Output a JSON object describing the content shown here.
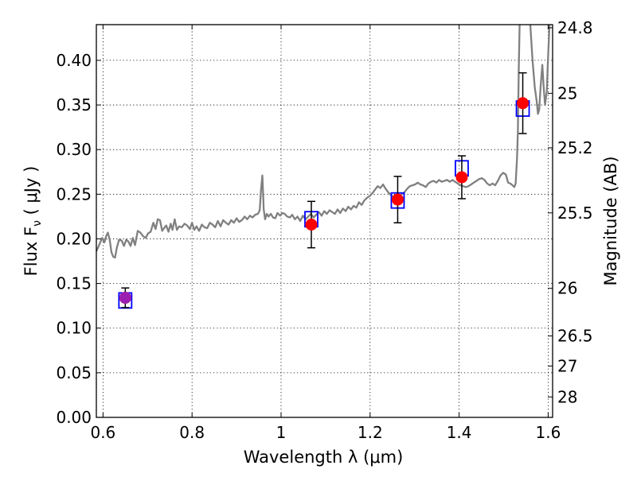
{
  "chart_data": {
    "type": "scatter",
    "xlabel": "Wavelength  λ (μm)",
    "ylabel": "Flux  F",
    "ylabel_sub": "ν",
    "ylabel_unit": " ( μJy )",
    "y2label": "Magnitude (AB)",
    "xlim": [
      0.585,
      1.61
    ],
    "ylim": [
      0.0,
      0.44
    ],
    "grid": true,
    "x_ticks": [
      {
        "value": 0.6,
        "label": "0.6"
      },
      {
        "value": 0.8,
        "label": "0.8"
      },
      {
        "value": 1.0,
        "label": "1"
      },
      {
        "value": 1.2,
        "label": "1.2"
      },
      {
        "value": 1.4,
        "label": "1.4"
      },
      {
        "value": 1.6,
        "label": "1.6"
      }
    ],
    "y_ticks": [
      {
        "value": 0.0,
        "label": "0.00"
      },
      {
        "value": 0.05,
        "label": "0.05"
      },
      {
        "value": 0.1,
        "label": "0.10"
      },
      {
        "value": 0.15,
        "label": "0.15"
      },
      {
        "value": 0.2,
        "label": "0.20"
      },
      {
        "value": 0.25,
        "label": "0.25"
      },
      {
        "value": 0.3,
        "label": "0.30"
      },
      {
        "value": 0.35,
        "label": "0.35"
      },
      {
        "value": 0.4,
        "label": "0.40"
      }
    ],
    "y2_ticks": [
      {
        "mag": 24.8,
        "label": "24.8"
      },
      {
        "mag": 25.0,
        "label": "25"
      },
      {
        "mag": 25.2,
        "label": "25.2"
      },
      {
        "mag": 25.5,
        "label": "25.5"
      },
      {
        "mag": 26.0,
        "label": "26"
      },
      {
        "mag": 26.5,
        "label": "26.5"
      },
      {
        "mag": 27.0,
        "label": "27"
      },
      {
        "mag": 28.0,
        "label": "28"
      }
    ],
    "series": [
      {
        "kind": "observed",
        "marker": "circle",
        "color": "#ff0000",
        "points": [
          {
            "x": 0.65,
            "y": 0.134,
            "err": 0.011
          },
          {
            "x": 1.068,
            "y": 0.216,
            "err": 0.026
          },
          {
            "x": 1.262,
            "y": 0.244,
            "err": 0.026
          },
          {
            "x": 1.406,
            "y": 0.269,
            "err": 0.024
          },
          {
            "x": 1.543,
            "y": 0.352,
            "err": 0.034
          }
        ]
      },
      {
        "kind": "model",
        "marker": "square",
        "color": "#0000ff",
        "points": [
          {
            "x": 0.65,
            "y": 0.131
          },
          {
            "x": 1.068,
            "y": 0.222
          },
          {
            "x": 1.262,
            "y": 0.243
          },
          {
            "x": 1.406,
            "y": 0.279
          },
          {
            "x": 1.543,
            "y": 0.346
          }
        ]
      },
      {
        "kind": "spectrum",
        "marker": "line",
        "color": "#808080",
        "points": [
          [
            0.585,
            0.186
          ],
          [
            0.592,
            0.194
          ],
          [
            0.598,
            0.201
          ],
          [
            0.603,
            0.196
          ],
          [
            0.607,
            0.203
          ],
          [
            0.611,
            0.207
          ],
          [
            0.615,
            0.199
          ],
          [
            0.619,
            0.185
          ],
          [
            0.623,
            0.18
          ],
          [
            0.627,
            0.179
          ],
          [
            0.631,
            0.19
          ],
          [
            0.636,
            0.199
          ],
          [
            0.642,
            0.198
          ],
          [
            0.647,
            0.192
          ],
          [
            0.652,
            0.199
          ],
          [
            0.657,
            0.197
          ],
          [
            0.662,
            0.192
          ],
          [
            0.667,
            0.201
          ],
          [
            0.672,
            0.193
          ],
          [
            0.678,
            0.209
          ],
          [
            0.684,
            0.207
          ],
          [
            0.69,
            0.203
          ],
          [
            0.696,
            0.201
          ],
          [
            0.701,
            0.206
          ],
          [
            0.707,
            0.208
          ],
          [
            0.713,
            0.218
          ],
          [
            0.718,
            0.211
          ],
          [
            0.723,
            0.222
          ],
          [
            0.728,
            0.221
          ],
          [
            0.733,
            0.209
          ],
          [
            0.737,
            0.212
          ],
          [
            0.742,
            0.215
          ],
          [
            0.747,
            0.208
          ],
          [
            0.752,
            0.217
          ],
          [
            0.756,
            0.21
          ],
          [
            0.761,
            0.222
          ],
          [
            0.766,
            0.21
          ],
          [
            0.771,
            0.214
          ],
          [
            0.777,
            0.213
          ],
          [
            0.783,
            0.217
          ],
          [
            0.789,
            0.215
          ],
          [
            0.795,
            0.211
          ],
          [
            0.8,
            0.218
          ],
          [
            0.805,
            0.21
          ],
          [
            0.81,
            0.214
          ],
          [
            0.816,
            0.209
          ],
          [
            0.822,
            0.216
          ],
          [
            0.828,
            0.213
          ],
          [
            0.834,
            0.212
          ],
          [
            0.84,
            0.218
          ],
          [
            0.846,
            0.216
          ],
          [
            0.852,
            0.213
          ],
          [
            0.858,
            0.22
          ],
          [
            0.864,
            0.214
          ],
          [
            0.87,
            0.221
          ],
          [
            0.876,
            0.218
          ],
          [
            0.882,
            0.216
          ],
          [
            0.888,
            0.221
          ],
          [
            0.894,
            0.218
          ],
          [
            0.9,
            0.223
          ],
          [
            0.906,
            0.219
          ],
          [
            0.912,
            0.221
          ],
          [
            0.918,
            0.225
          ],
          [
            0.924,
            0.222
          ],
          [
            0.93,
            0.226
          ],
          [
            0.936,
            0.224
          ],
          [
            0.942,
            0.227
          ],
          [
            0.948,
            0.228
          ],
          [
            0.952,
            0.232
          ],
          [
            0.955,
            0.255
          ],
          [
            0.958,
            0.271
          ],
          [
            0.961,
            0.233
          ],
          [
            0.964,
            0.222
          ],
          [
            0.968,
            0.228
          ],
          [
            0.972,
            0.225
          ],
          [
            0.977,
            0.228
          ],
          [
            0.982,
            0.224
          ],
          [
            0.987,
            0.223
          ],
          [
            0.992,
            0.229
          ],
          [
            0.998,
            0.226
          ],
          [
            1.003,
            0.229
          ],
          [
            1.008,
            0.228
          ],
          [
            1.014,
            0.225
          ],
          [
            1.02,
            0.224
          ],
          [
            1.025,
            0.227
          ],
          [
            1.031,
            0.222
          ],
          [
            1.037,
            0.225
          ],
          [
            1.043,
            0.22
          ],
          [
            1.049,
            0.226
          ],
          [
            1.055,
            0.222
          ],
          [
            1.061,
            0.225
          ],
          [
            1.067,
            0.228
          ],
          [
            1.073,
            0.224
          ],
          [
            1.079,
            0.227
          ],
          [
            1.085,
            0.23
          ],
          [
            1.091,
            0.226
          ],
          [
            1.097,
            0.231
          ],
          [
            1.103,
            0.228
          ],
          [
            1.109,
            0.232
          ],
          [
            1.115,
            0.23
          ],
          [
            1.121,
            0.228
          ],
          [
            1.127,
            0.233
          ],
          [
            1.133,
            0.229
          ],
          [
            1.139,
            0.234
          ],
          [
            1.145,
            0.231
          ],
          [
            1.151,
            0.236
          ],
          [
            1.157,
            0.233
          ],
          [
            1.163,
            0.237
          ],
          [
            1.169,
            0.235
          ],
          [
            1.175,
            0.241
          ],
          [
            1.181,
            0.238
          ],
          [
            1.187,
            0.243
          ],
          [
            1.193,
            0.246
          ],
          [
            1.199,
            0.248
          ],
          [
            1.205,
            0.251
          ],
          [
            1.211,
            0.255
          ],
          [
            1.217,
            0.259
          ],
          [
            1.223,
            0.257
          ],
          [
            1.229,
            0.261
          ],
          [
            1.235,
            0.256
          ],
          [
            1.241,
            0.252
          ],
          [
            1.247,
            0.249
          ],
          [
            1.253,
            0.247
          ],
          [
            1.259,
            0.246
          ],
          [
            1.265,
            0.248
          ],
          [
            1.271,
            0.25
          ],
          [
            1.277,
            0.252
          ],
          [
            1.283,
            0.256
          ],
          [
            1.289,
            0.259
          ],
          [
            1.295,
            0.26
          ],
          [
            1.301,
            0.261
          ],
          [
            1.307,
            0.263
          ],
          [
            1.313,
            0.261
          ],
          [
            1.319,
            0.26
          ],
          [
            1.325,
            0.258
          ],
          [
            1.331,
            0.262
          ],
          [
            1.337,
            0.264
          ],
          [
            1.343,
            0.265
          ],
          [
            1.349,
            0.263
          ],
          [
            1.355,
            0.266
          ],
          [
            1.361,
            0.264
          ],
          [
            1.367,
            0.265
          ],
          [
            1.373,
            0.266
          ],
          [
            1.379,
            0.264
          ],
          [
            1.385,
            0.266
          ],
          [
            1.391,
            0.264
          ],
          [
            1.397,
            0.262
          ],
          [
            1.403,
            0.26
          ],
          [
            1.409,
            0.259
          ],
          [
            1.415,
            0.258
          ],
          [
            1.421,
            0.259
          ],
          [
            1.427,
            0.261
          ],
          [
            1.433,
            0.263
          ],
          [
            1.439,
            0.265
          ],
          [
            1.445,
            0.267
          ],
          [
            1.451,
            0.268
          ],
          [
            1.457,
            0.266
          ],
          [
            1.463,
            0.262
          ],
          [
            1.469,
            0.26
          ],
          [
            1.475,
            0.262
          ],
          [
            1.481,
            0.26
          ],
          [
            1.487,
            0.265
          ],
          [
            1.493,
            0.271
          ],
          [
            1.499,
            0.274
          ],
          [
            1.505,
            0.272
          ],
          [
            1.51,
            0.263
          ],
          [
            1.515,
            0.262
          ],
          [
            1.52,
            0.26
          ],
          [
            1.524,
            0.258
          ],
          [
            1.527,
            0.262
          ],
          [
            1.53,
            0.29
          ],
          [
            1.532,
            0.32
          ],
          [
            1.534,
            0.39
          ],
          [
            1.536,
            0.44
          ]
        ]
      },
      {
        "kind": "spectrum",
        "marker": "line",
        "color": "#808080",
        "points": [
          [
            1.56,
            0.44
          ],
          [
            1.565,
            0.4
          ],
          [
            1.57,
            0.37
          ],
          [
            1.574,
            0.355
          ],
          [
            1.577,
            0.34
          ],
          [
            1.58,
            0.345
          ],
          [
            1.583,
            0.37
          ],
          [
            1.587,
            0.395
          ],
          [
            1.59,
            0.37
          ],
          [
            1.593,
            0.35
          ],
          [
            1.597,
            0.365
          ],
          [
            1.6,
            0.405
          ],
          [
            1.603,
            0.44
          ]
        ]
      }
    ]
  }
}
